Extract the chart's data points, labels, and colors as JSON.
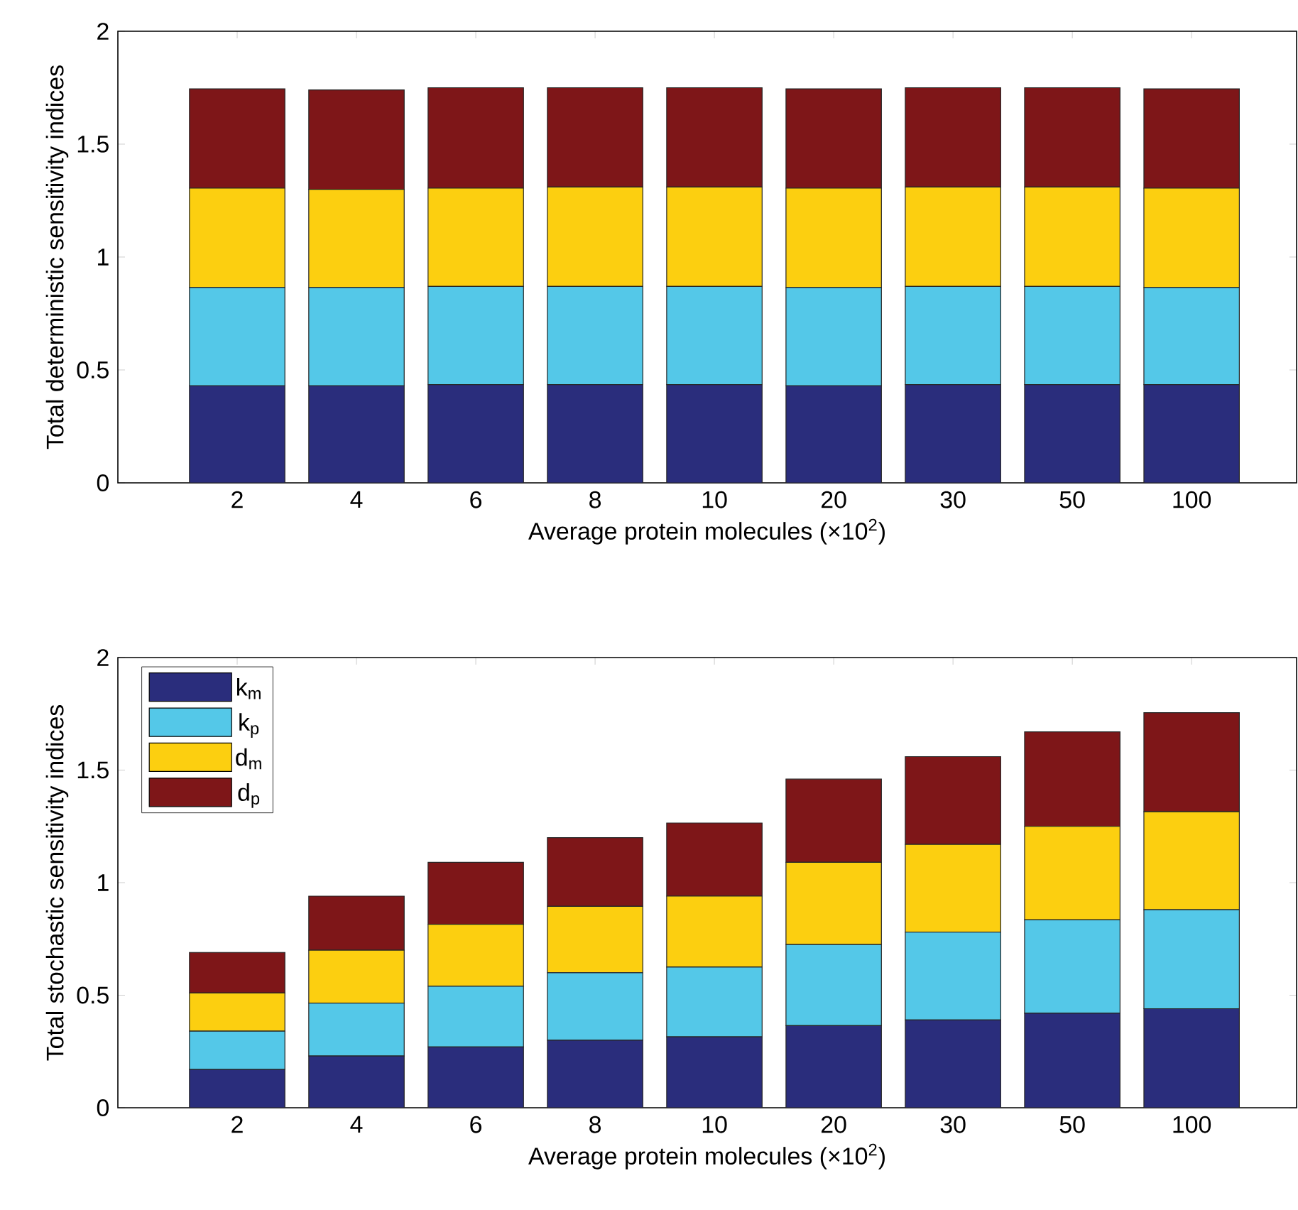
{
  "chart_data": [
    {
      "type": "bar",
      "stacked": true,
      "categories": [
        "2",
        "4",
        "6",
        "8",
        "10",
        "20",
        "30",
        "50",
        "100"
      ],
      "xlabel": "Average protein molecules (×10$^{2}$)",
      "ylabel": "Total deterministic sensitivity indices",
      "ylim": [
        0,
        2
      ],
      "yticks": [
        0,
        0.5,
        1,
        1.5,
        2
      ],
      "series": [
        {
          "color": "#2a2d7c",
          "values": [
            0.43,
            0.43,
            0.435,
            0.435,
            0.435,
            0.43,
            0.435,
            0.435,
            0.435
          ]
        },
        {
          "color": "#54c8e8",
          "values": [
            0.435,
            0.435,
            0.435,
            0.435,
            0.435,
            0.435,
            0.435,
            0.435,
            0.43
          ]
        },
        {
          "color": "#fccf10",
          "values": [
            0.44,
            0.435,
            0.435,
            0.44,
            0.44,
            0.44,
            0.44,
            0.44,
            0.44
          ]
        },
        {
          "color": "#7e1618",
          "values": [
            0.44,
            0.44,
            0.445,
            0.44,
            0.44,
            0.44,
            0.44,
            0.44,
            0.44
          ]
        }
      ]
    },
    {
      "type": "bar",
      "stacked": true,
      "categories": [
        "2",
        "4",
        "6",
        "8",
        "10",
        "20",
        "30",
        "50",
        "100"
      ],
      "xlabel": "Average protein molecules (×10$^{2}$)",
      "ylabel": "Total stochastic sensitivity indices",
      "ylim": [
        0,
        2
      ],
      "yticks": [
        0,
        0.5,
        1,
        1.5,
        2
      ],
      "legend": "top left",
      "series": [
        {
          "name": "k$_{m}$",
          "color": "#2a2d7c",
          "values": [
            0.17,
            0.23,
            0.27,
            0.3,
            0.315,
            0.365,
            0.39,
            0.42,
            0.44
          ]
        },
        {
          "name": "k$_{p}$",
          "color": "#54c8e8",
          "values": [
            0.17,
            0.235,
            0.27,
            0.3,
            0.31,
            0.36,
            0.39,
            0.415,
            0.44
          ]
        },
        {
          "name": "d$_{m}$",
          "color": "#fccf10",
          "values": [
            0.17,
            0.235,
            0.275,
            0.295,
            0.315,
            0.365,
            0.39,
            0.415,
            0.435
          ]
        },
        {
          "name": "d$_{p}$",
          "color": "#7e1618",
          "values": [
            0.18,
            0.24,
            0.275,
            0.305,
            0.325,
            0.37,
            0.39,
            0.42,
            0.44
          ]
        }
      ]
    }
  ]
}
